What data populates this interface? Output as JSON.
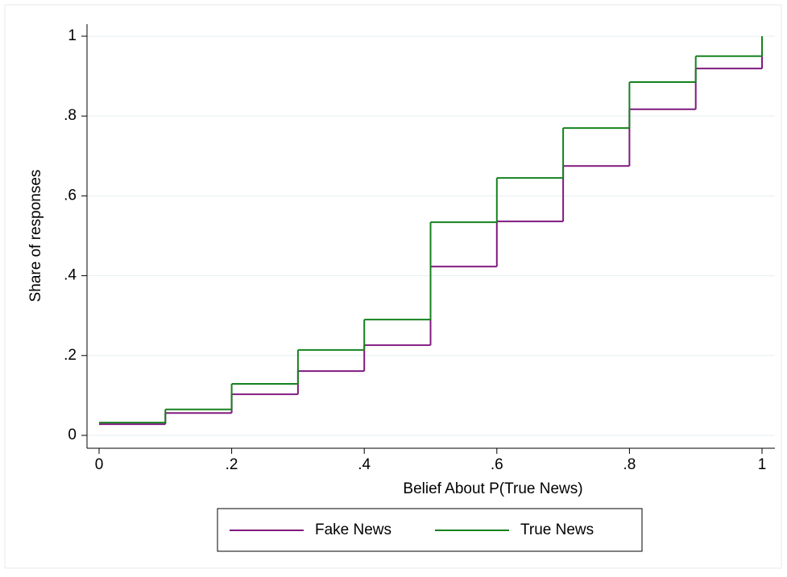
{
  "chart_data": {
    "type": "step",
    "x_label": "Belief About P(True News)",
    "y_label": "Share of responses",
    "x": [
      0,
      0.1,
      0.2,
      0.3,
      0.4,
      0.5,
      0.6,
      0.7,
      0.8,
      0.9,
      1
    ],
    "series": [
      {
        "name": "Fake News",
        "color": "#80197f",
        "values": [
          0.028,
          0.056,
          0.103,
          0.161,
          0.226,
          0.423,
          0.536,
          0.675,
          0.817,
          0.919,
          1
        ]
      },
      {
        "name": "True News",
        "color": "#15821e",
        "values": [
          0.032,
          0.065,
          0.129,
          0.214,
          0.29,
          0.534,
          0.645,
          0.77,
          0.885,
          0.95,
          1
        ]
      }
    ],
    "xlim": [
      0,
      1
    ],
    "ylim": [
      0,
      1
    ],
    "xticks": [
      0,
      {
        "value": 0.2,
        "label": ".2"
      },
      {
        "value": 0.4,
        "label": ".4"
      },
      {
        "value": 0.6,
        "label": ".6"
      },
      {
        "value": 0.8,
        "label": ".8"
      },
      1
    ],
    "yticks": [
      0,
      {
        "value": 0.2,
        "label": ".2"
      },
      {
        "value": 0.4,
        "label": ".4"
      },
      {
        "value": 0.6,
        "label": ".6"
      },
      {
        "value": 0.8,
        "label": ".8"
      },
      1
    ],
    "grid": true
  }
}
